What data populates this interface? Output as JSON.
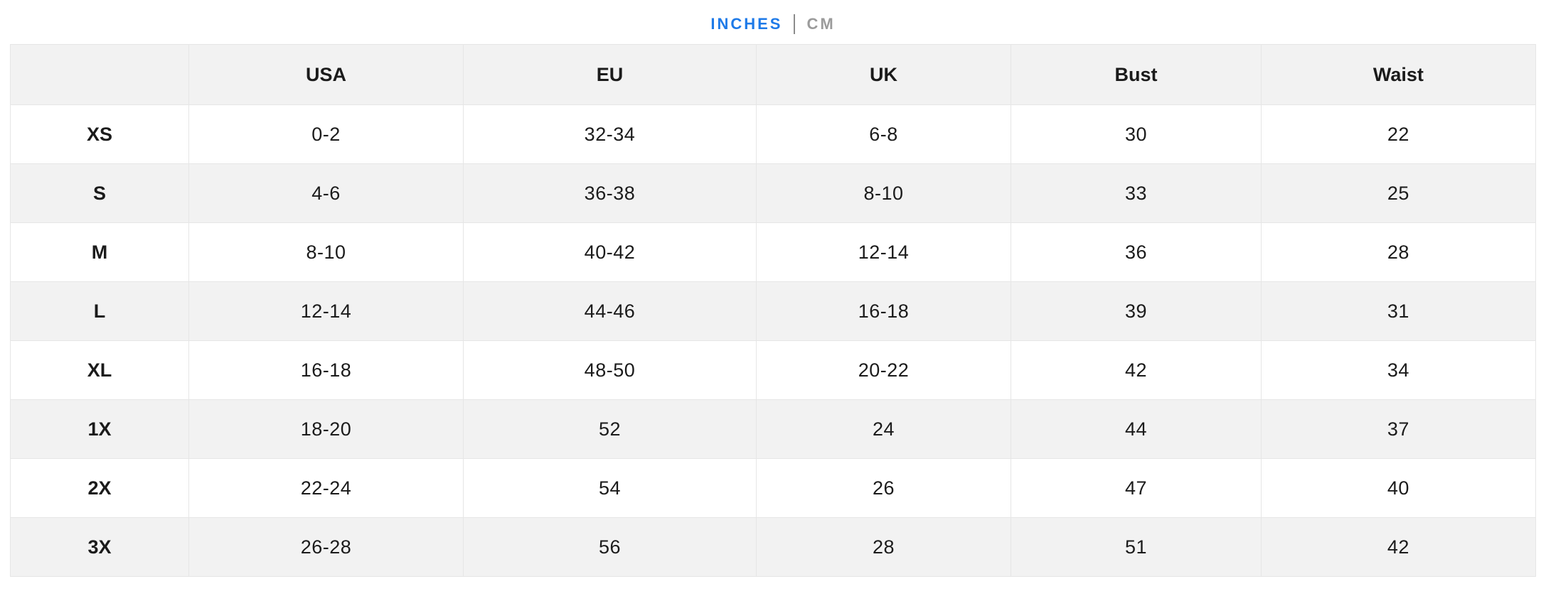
{
  "unit_toggle": {
    "inches_label": "INCHES",
    "cm_label": "CM",
    "active_unit": "INCHES",
    "active_color": "#1E7AE8",
    "inactive_color": "#9B9B9B",
    "separator_color": "#8C8C8C"
  },
  "size_chart": {
    "columns": [
      "",
      "USA",
      "EU",
      "UK",
      "Bust",
      "Waist"
    ],
    "rows": [
      [
        "XS",
        "0-2",
        "32-34",
        "6-8",
        "30",
        "22"
      ],
      [
        "S",
        "4-6",
        "36-38",
        "8-10",
        "33",
        "25"
      ],
      [
        "M",
        "8-10",
        "40-42",
        "12-14",
        "36",
        "28"
      ],
      [
        "L",
        "12-14",
        "44-46",
        "16-18",
        "39",
        "31"
      ],
      [
        "XL",
        "16-18",
        "48-50",
        "20-22",
        "42",
        "34"
      ],
      [
        "1X",
        "18-20",
        "52",
        "24",
        "44",
        "37"
      ],
      [
        "2X",
        "22-24",
        "54",
        "26",
        "47",
        "40"
      ],
      [
        "3X",
        "26-28",
        "56",
        "28",
        "51",
        "42"
      ]
    ],
    "stripe_color": "#F2F2F2",
    "header_bg_color": "#F2F2F2",
    "border_color": "#E6E6E6",
    "text_color": "#1B1B1B"
  }
}
